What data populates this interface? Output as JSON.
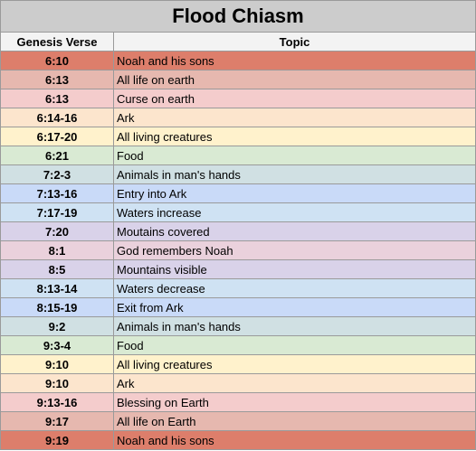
{
  "title": "Flood Chiasm",
  "headers": {
    "verse": "Genesis Verse",
    "topic": "Topic"
  },
  "colors": {
    "title_bg": "#cccccc",
    "header_bg": "#f3f3f3",
    "border": "#9a9a9a"
  },
  "rows": [
    {
      "verse": "6:10",
      "topic": "Noah and his sons",
      "color": "#dd7e6b"
    },
    {
      "verse": "6:13",
      "topic": "All life on earth",
      "color": "#e6b8af"
    },
    {
      "verse": "6:13",
      "topic": "Curse on earth",
      "color": "#f4cccc"
    },
    {
      "verse": "6:14-16",
      "topic": "Ark",
      "color": "#fce5cd"
    },
    {
      "verse": "6:17-20",
      "topic": "All living creatures",
      "color": "#fff2cc"
    },
    {
      "verse": "6:21",
      "topic": "Food",
      "color": "#d9ead3"
    },
    {
      "verse": "7:2-3",
      "topic": "Animals in man's hands",
      "color": "#d0e0e3"
    },
    {
      "verse": "7:13-16",
      "topic": "Entry into Ark",
      "color": "#c9daf8"
    },
    {
      "verse": "7:17-19",
      "topic": "Waters increase",
      "color": "#cfe2f3"
    },
    {
      "verse": "7:20",
      "topic": "Moutains covered",
      "color": "#d9d2e9"
    },
    {
      "verse": "8:1",
      "topic": "God remembers Noah",
      "color": "#ead1dc"
    },
    {
      "verse": "8:5",
      "topic": "Mountains visible",
      "color": "#d9d2e9"
    },
    {
      "verse": "8:13-14",
      "topic": "Waters decrease",
      "color": "#cfe2f3"
    },
    {
      "verse": "8:15-19",
      "topic": "Exit from Ark",
      "color": "#c9daf8"
    },
    {
      "verse": "9:2",
      "topic": "Animals in man's hands",
      "color": "#d0e0e3"
    },
    {
      "verse": "9:3-4",
      "topic": "Food",
      "color": "#d9ead3"
    },
    {
      "verse": "9:10",
      "topic": "All living creatures",
      "color": "#fff2cc"
    },
    {
      "verse": "9:10",
      "topic": "Ark",
      "color": "#fce5cd"
    },
    {
      "verse": "9:13-16",
      "topic": "Blessing on Earth",
      "color": "#f4cccc"
    },
    {
      "verse": "9:17",
      "topic": "All life on Earth",
      "color": "#e6b8af"
    },
    {
      "verse": "9:19",
      "topic": "Noah and his sons",
      "color": "#dd7e6b"
    }
  ]
}
